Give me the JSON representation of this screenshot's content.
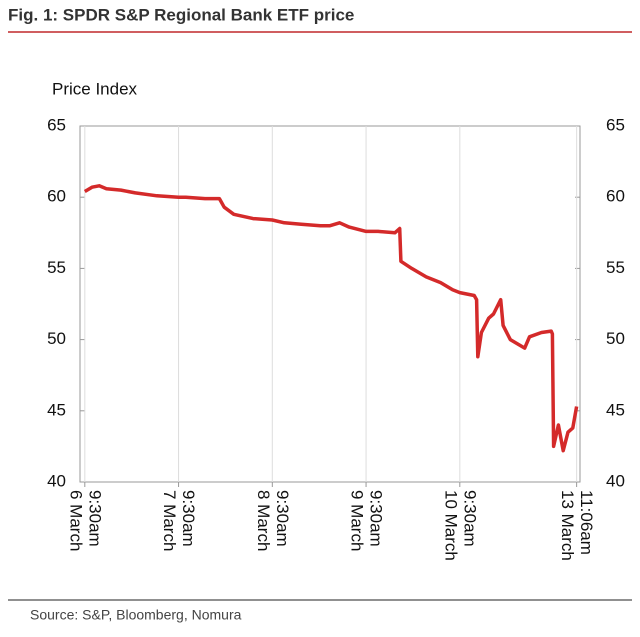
{
  "chart_data": {
    "type": "line",
    "title": "Fig. 1: SPDR S&P Regional Bank ETF price",
    "y_label": "Price Index",
    "source": "Source: S&P, Bloomberg, Nomura",
    "xlim": [
      -20,
      2060
    ],
    "xticks": [
      {
        "value": 0,
        "label": "9:30am"
      },
      {
        "value": 390,
        "label": "9:30am"
      },
      {
        "value": 780,
        "label": "9:30am"
      },
      {
        "value": 1170,
        "label": "9:30am"
      },
      {
        "value": 1560,
        "label": "9:30am"
      },
      {
        "value": 2046,
        "label": "11:06am"
      }
    ],
    "xtick_dates": [
      "6 March",
      "7 March",
      "8 March",
      "9 March",
      "10 March",
      "13 March"
    ],
    "ylim": [
      40,
      65
    ],
    "yticks": [
      40,
      45,
      50,
      55,
      60,
      65
    ],
    "y2lim": [
      40,
      65
    ],
    "y2ticks": [
      40,
      45,
      50,
      55,
      60,
      65
    ],
    "series": [
      {
        "color": "#d42a2a",
        "x": [
          0,
          30,
          60,
          90,
          150,
          210,
          300,
          390,
          420,
          500,
          560,
          580,
          620,
          700,
          780,
          830,
          900,
          980,
          1020,
          1060,
          1100,
          1170,
          1220,
          1290,
          1310,
          1315,
          1360,
          1420,
          1480,
          1530,
          1560,
          1620,
          1630,
          1635,
          1650,
          1680,
          1700,
          1730,
          1740,
          1770,
          1830,
          1850,
          1900,
          1940,
          1945,
          1950,
          1970,
          1990,
          2010,
          2030,
          2046
        ],
        "values": [
          60.4,
          60.7,
          60.8,
          60.6,
          60.5,
          60.3,
          60.1,
          60.0,
          60.0,
          59.9,
          59.9,
          59.3,
          58.8,
          58.5,
          58.4,
          58.2,
          58.1,
          58.0,
          58.0,
          58.2,
          57.9,
          57.6,
          57.6,
          57.5,
          57.8,
          55.5,
          55.0,
          54.4,
          54.0,
          53.5,
          53.3,
          53.1,
          52.8,
          48.8,
          50.5,
          51.5,
          51.8,
          52.8,
          51.0,
          50.0,
          49.4,
          50.2,
          50.5,
          50.6,
          50.4,
          42.5,
          44.0,
          42.2,
          43.5,
          43.8,
          45.3
        ]
      }
    ]
  }
}
